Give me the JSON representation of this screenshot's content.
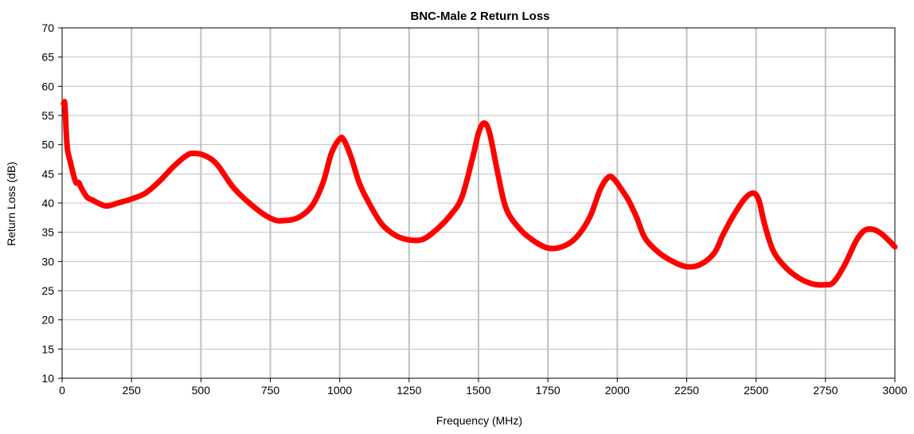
{
  "chart_data": {
    "type": "line",
    "title": "BNC-Male 2 Return Loss",
    "xlabel": "Frequency (MHz)",
    "ylabel": "Return Loss (dB)",
    "xlim": [
      0,
      3000
    ],
    "ylim": [
      10,
      70
    ],
    "x_ticks": [
      0,
      250,
      500,
      750,
      1000,
      1250,
      1500,
      1750,
      2000,
      2250,
      2500,
      2750,
      3000
    ],
    "y_ticks": [
      10,
      15,
      20,
      25,
      30,
      35,
      40,
      45,
      50,
      55,
      60,
      65,
      70
    ],
    "grid": true,
    "legend": "none",
    "series_color": "#ff0000",
    "grid_color": "#c0c0c0",
    "series": [
      {
        "x": [
          5,
          10,
          15,
          20,
          30,
          40,
          50,
          60,
          70,
          90,
          110,
          130,
          160,
          200,
          250,
          300,
          350,
          400,
          450,
          480,
          520,
          560,
          620,
          700,
          760,
          800,
          850,
          900,
          940,
          970,
          1000,
          1015,
          1040,
          1070,
          1100,
          1150,
          1200,
          1250,
          1300,
          1350,
          1400,
          1440,
          1480,
          1500,
          1520,
          1540,
          1570,
          1600,
          1650,
          1700,
          1750,
          1800,
          1850,
          1900,
          1940,
          1970,
          1990,
          2010,
          2040,
          2070,
          2100,
          2150,
          2200,
          2250,
          2300,
          2350,
          2380,
          2420,
          2460,
          2490,
          2510,
          2530,
          2560,
          2600,
          2650,
          2700,
          2750,
          2780,
          2820,
          2860,
          2890,
          2920,
          2950,
          2980,
          3000
        ],
        "y": [
          57,
          57,
          52,
          49,
          47,
          45,
          43.5,
          43.5,
          42.5,
          41,
          40.5,
          40,
          39.5,
          40,
          40.7,
          41.7,
          43.7,
          46.2,
          48.2,
          48.5,
          48,
          46.5,
          42.5,
          39,
          37.2,
          37,
          37.5,
          39.5,
          43.5,
          48.5,
          51,
          50.8,
          48,
          43.5,
          40.5,
          36.5,
          34.5,
          33.7,
          33.8,
          35.5,
          38,
          41,
          48,
          52,
          53.7,
          52,
          45,
          39,
          35.5,
          33.5,
          32.3,
          32.5,
          34,
          37.5,
          42.5,
          44.5,
          44,
          42.7,
          40.5,
          37.5,
          34,
          31.5,
          30,
          29.1,
          29.5,
          31.5,
          34.5,
          38,
          40.8,
          41.7,
          40.5,
          36.5,
          32,
          29.3,
          27.3,
          26.2,
          26,
          26.5,
          29.5,
          33.5,
          35.3,
          35.5,
          34.8,
          33.5,
          32.5
        ]
      }
    ]
  }
}
